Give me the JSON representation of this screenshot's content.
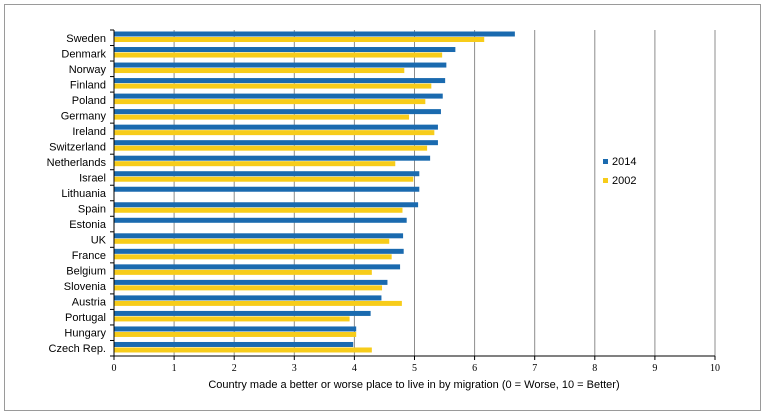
{
  "chart_data": {
    "type": "bar",
    "orientation": "horizontal",
    "xlabel": "Country made a better or worse place to live in by migration (0 = Worse, 10 = Better)",
    "xlim": [
      0,
      10
    ],
    "xticks": [
      "0",
      "1",
      "2",
      "3",
      "4",
      "5",
      "6",
      "7",
      "8",
      "9",
      "10"
    ],
    "grid": true,
    "legend_position": "right",
    "categories": [
      "Sweden",
      "Denmark",
      "Norway",
      "Finland",
      "Poland",
      "Germany",
      "Ireland",
      "Switzerland",
      "Netherlands",
      "Israel",
      "Lithuania",
      "Spain",
      "Estonia",
      "UK",
      "France",
      "Belgium",
      "Slovenia",
      "Austria",
      "Portugal",
      "Hungary",
      "Czech Rep."
    ],
    "series": [
      {
        "name": "2014",
        "color": "#1a6aaf",
        "values": [
          6.67,
          5.68,
          5.53,
          5.51,
          5.47,
          5.44,
          5.39,
          5.39,
          5.26,
          5.08,
          5.08,
          5.06,
          4.87,
          4.81,
          4.82,
          4.76,
          4.55,
          4.45,
          4.27,
          4.03,
          3.98
        ]
      },
      {
        "name": "2002",
        "color": "#f7cc1a",
        "values": [
          6.16,
          5.46,
          4.83,
          5.28,
          5.18,
          4.91,
          5.33,
          5.21,
          4.68,
          4.98,
          null,
          4.8,
          null,
          4.58,
          4.62,
          4.29,
          4.46,
          4.79,
          3.92,
          4.03,
          4.29
        ]
      }
    ]
  }
}
